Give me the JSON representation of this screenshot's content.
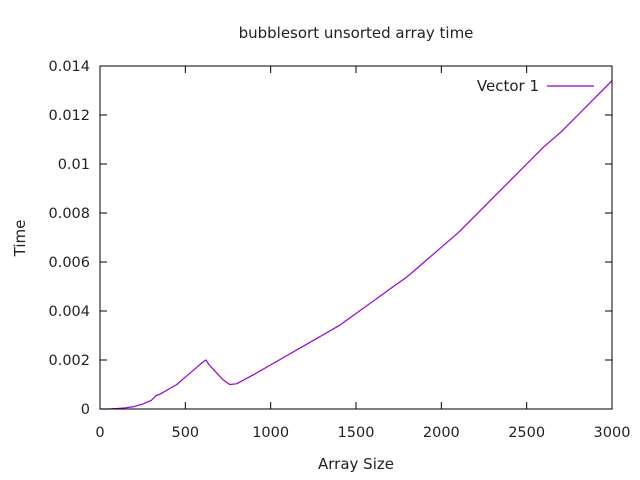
{
  "chart_data": {
    "type": "line",
    "title": "bubblesort unsorted array time",
    "xlabel": "Array Size",
    "ylabel": "Time",
    "xlim": [
      0,
      3000
    ],
    "ylim": [
      0,
      0.014
    ],
    "x_ticks": [
      "0",
      "500",
      "1000",
      "1500",
      "2000",
      "2500",
      "3000"
    ],
    "y_ticks": [
      "0",
      "0.002",
      "0.004",
      "0.006",
      "0.008",
      "0.01",
      "0.012",
      "0.014"
    ],
    "grid": false,
    "legend_position": "top-right",
    "series": [
      {
        "name": "Vector 1",
        "color": "#9400d3",
        "points": [
          [
            0,
            0
          ],
          [
            50,
            0
          ],
          [
            100,
            2e-05
          ],
          [
            150,
            5e-05
          ],
          [
            200,
            0.0001
          ],
          [
            250,
            0.0002
          ],
          [
            300,
            0.00035
          ],
          [
            330,
            0.00055
          ],
          [
            350,
            0.0006
          ],
          [
            400,
            0.0008
          ],
          [
            450,
            0.001
          ],
          [
            500,
            0.0013
          ],
          [
            550,
            0.0016
          ],
          [
            600,
            0.0019
          ],
          [
            620,
            0.002
          ],
          [
            640,
            0.0018
          ],
          [
            680,
            0.0015
          ],
          [
            720,
            0.0012
          ],
          [
            760,
            0.001
          ],
          [
            800,
            0.00103
          ],
          [
            900,
            0.0014
          ],
          [
            1000,
            0.0018
          ],
          [
            1100,
            0.0022
          ],
          [
            1200,
            0.0026
          ],
          [
            1300,
            0.003
          ],
          [
            1400,
            0.0034
          ],
          [
            1500,
            0.0039
          ],
          [
            1600,
            0.0044
          ],
          [
            1700,
            0.0049
          ],
          [
            1800,
            0.0054
          ],
          [
            1900,
            0.006
          ],
          [
            2000,
            0.0066
          ],
          [
            2100,
            0.0072
          ],
          [
            2200,
            0.0079
          ],
          [
            2300,
            0.0086
          ],
          [
            2400,
            0.0093
          ],
          [
            2500,
            0.01
          ],
          [
            2600,
            0.0107
          ],
          [
            2700,
            0.0113
          ],
          [
            2800,
            0.012
          ],
          [
            2900,
            0.0127
          ],
          [
            3000,
            0.0134
          ]
        ]
      }
    ]
  }
}
